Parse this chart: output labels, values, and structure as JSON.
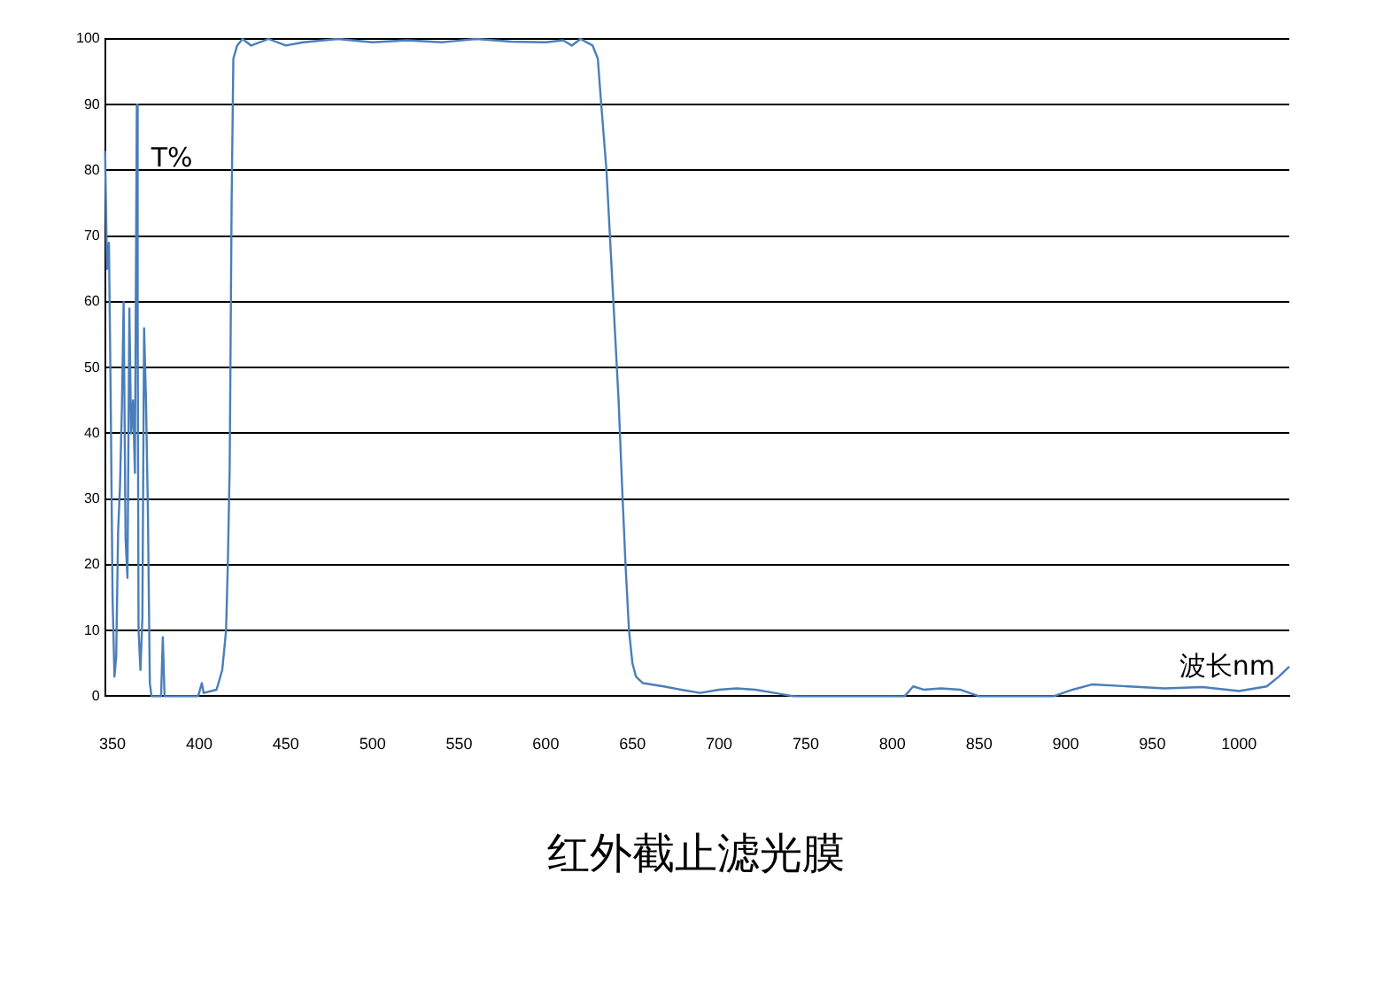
{
  "chart_data": {
    "type": "line",
    "title": "红外截止滤光膜",
    "annotations": [
      "T%",
      "波长nm"
    ],
    "x": [
      345.7,
      346.8,
      347.9,
      348.9,
      350,
      351.1,
      352.1,
      353.2,
      354.3,
      355.4,
      356.4,
      357.5,
      358.6,
      359.7,
      360.7,
      361.8,
      362.9,
      364,
      364.5,
      365,
      366.1,
      367.2,
      368.2,
      369.3,
      370.4,
      371.5,
      372.5,
      374.7,
      378,
      379,
      380,
      399.4,
      401.5,
      402.6,
      410,
      413.3,
      415.5,
      416.5,
      417.6,
      418.7,
      419.7,
      421.9,
      425,
      430,
      440,
      450,
      460,
      480,
      500,
      520,
      540,
      560,
      580,
      600,
      610,
      615,
      620,
      627,
      630,
      632,
      635,
      637,
      640,
      642,
      644,
      646,
      648,
      650,
      652,
      656,
      668,
      678,
      689,
      700,
      710,
      721,
      732,
      743,
      786,
      807,
      812,
      818,
      828,
      839,
      850,
      893,
      904,
      915,
      936,
      957,
      979,
      1000,
      1016,
      1023,
      1029
    ],
    "series": [
      {
        "color": "#4a7ebb",
        "values": [
          83,
          65,
          69,
          46,
          15,
          3,
          6,
          25,
          32,
          44,
          60,
          24,
          18,
          59,
          40,
          45,
          34,
          90,
          57,
          10,
          4,
          12,
          56,
          45,
          28,
          2,
          0,
          0,
          0,
          9,
          0,
          0,
          2,
          0.5,
          1,
          4,
          10,
          20,
          35,
          75,
          97,
          99,
          100,
          99,
          100,
          99,
          99.5,
          100,
          99.5,
          99.8,
          99.5,
          100,
          99.6,
          99.5,
          99.8,
          99,
          100,
          99,
          97,
          90,
          80,
          70,
          55,
          45,
          32,
          20,
          10,
          5,
          3,
          2,
          1.5,
          1,
          0.5,
          1,
          1.2,
          1,
          0.5,
          0,
          0,
          0,
          1.5,
          1,
          1.2,
          1,
          0,
          0,
          1,
          1.8,
          1.5,
          1.2,
          1.4,
          0.8,
          1.5,
          3,
          4.5
        ]
      }
    ],
    "xlim": [
      345.7,
      1029
    ],
    "xticks": [
      350,
      400,
      450,
      500,
      550,
      600,
      650,
      700,
      750,
      800,
      850,
      900,
      950,
      1000
    ],
    "ylim": [
      0,
      100
    ],
    "yticks": [
      0,
      10,
      20,
      30,
      40,
      50,
      60,
      70,
      80,
      90,
      100
    ],
    "grid": "y",
    "legend": false,
    "marker": "none",
    "line_style": "solid"
  }
}
